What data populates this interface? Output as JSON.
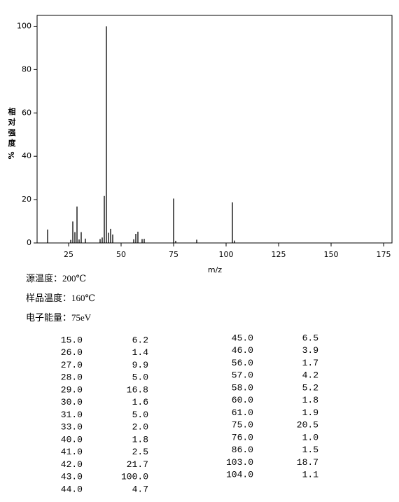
{
  "chart_data": {
    "type": "bar",
    "xlabel": "m/z",
    "ylabel": "相对强度",
    "ylabel_unit": "%",
    "x": [
      15,
      26,
      27,
      28,
      29,
      30,
      31,
      33,
      40,
      41,
      42,
      43,
      44,
      45,
      46,
      56,
      57,
      58,
      60,
      61,
      75,
      76,
      86,
      103,
      104
    ],
    "values": [
      6.2,
      1.4,
      9.9,
      5.0,
      16.8,
      1.6,
      5.0,
      2.0,
      1.8,
      2.5,
      21.7,
      100.0,
      4.7,
      6.5,
      3.9,
      1.7,
      4.2,
      5.2,
      1.8,
      1.9,
      20.5,
      1.0,
      1.5,
      18.7,
      1.1
    ],
    "color": "#000000",
    "xlim": [
      10,
      179
    ],
    "xticks": [
      25,
      50,
      75,
      100,
      125,
      150,
      175
    ],
    "ylim": [
      0,
      105
    ],
    "yticks": [
      0,
      20,
      40,
      60,
      80,
      100
    ]
  },
  "info": [
    "源温度：200℃",
    "样品温度：160℃",
    "电子能量：75eV"
  ],
  "table": {
    "left": [
      [
        "15.0",
        "6.2"
      ],
      [
        "26.0",
        "1.4"
      ],
      [
        "27.0",
        "9.9"
      ],
      [
        "28.0",
        "5.0"
      ],
      [
        "29.0",
        "16.8"
      ],
      [
        "30.0",
        "1.6"
      ],
      [
        "31.0",
        "5.0"
      ],
      [
        "33.0",
        "2.0"
      ],
      [
        "40.0",
        "1.8"
      ],
      [
        "41.0",
        "2.5"
      ],
      [
        "42.0",
        "21.7"
      ],
      [
        "43.0",
        "100.0"
      ],
      [
        "44.0",
        "4.7"
      ]
    ],
    "right": [
      [
        "45.0",
        "6.5"
      ],
      [
        "46.0",
        "3.9"
      ],
      [
        "56.0",
        "1.7"
      ],
      [
        "57.0",
        "4.2"
      ],
      [
        "58.0",
        "5.2"
      ],
      [
        "60.0",
        "1.8"
      ],
      [
        "61.0",
        "1.9"
      ],
      [
        "75.0",
        "20.5"
      ],
      [
        "76.0",
        "1.0"
      ],
      [
        "86.0",
        "1.5"
      ],
      [
        "103.0",
        "18.7"
      ],
      [
        "104.0",
        "1.1"
      ]
    ]
  }
}
